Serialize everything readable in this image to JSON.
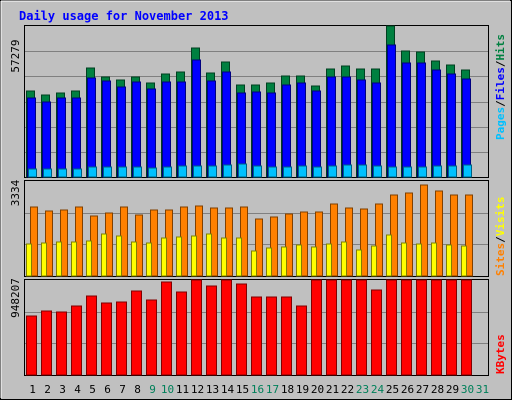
{
  "chart_data": {
    "type": "bar",
    "title": "Daily usage for November 2013",
    "categories": [
      "1",
      "2",
      "3",
      "4",
      "5",
      "6",
      "7",
      "8",
      "9",
      "10",
      "11",
      "12",
      "13",
      "14",
      "15",
      "16",
      "17",
      "18",
      "19",
      "20",
      "21",
      "22",
      "23",
      "24",
      "25",
      "26",
      "27",
      "28",
      "29",
      "30",
      "31"
    ],
    "weekend_categories": [
      "9",
      "10",
      "16",
      "17",
      "23",
      "24",
      "30",
      "31"
    ],
    "grid": true,
    "panels": [
      {
        "ylabel_max": "57279",
        "ymax": 57279,
        "legend": [
          "Pages",
          "/",
          "Files",
          "/",
          "Hits"
        ],
        "series": [
          {
            "name": "Hits",
            "color": "#008040",
            "values": [
              32500,
              31000,
              32000,
              32800,
              41200,
              38000,
              36800,
              37800,
              35800,
              39000,
              39800,
              48900,
              39500,
              43500,
              34800,
              34800,
              35600,
              38200,
              38500,
              34600,
              40800,
              42000,
              40800,
              40800,
              57100,
              47700,
              47500,
              44000,
              42300,
              40700,
              null
            ]
          },
          {
            "name": "Files",
            "color": "#0000ff",
            "values": [
              30000,
              28300,
              29800,
              29800,
              37600,
              36300,
              34200,
              36200,
              33200,
              36200,
              36200,
              44400,
              36300,
              40000,
              32000,
              32300,
              31700,
              34900,
              35800,
              32500,
              37800,
              38100,
              36900,
              35700,
              49900,
              43200,
              43200,
              40400,
              39000,
              37300,
              null
            ]
          },
          {
            "name": "Pages",
            "color": "#00c0ff",
            "values": [
              3000,
              3200,
              3100,
              3000,
              3700,
              3800,
              3700,
              3900,
              3600,
              3900,
              4100,
              4200,
              4300,
              4400,
              4800,
              4300,
              3700,
              3900,
              4100,
              3900,
              4200,
              4400,
              4400,
              4000,
              3900,
              3800,
              3900,
              4000,
              4300,
              4400,
              null
            ]
          }
        ]
      },
      {
        "ylabel_max": "3334",
        "ymax": 3334,
        "legend": [
          "Sites",
          "/",
          "Visits"
        ],
        "series": [
          {
            "name": "Visits",
            "color": "#ff8000",
            "values": [
              2420,
              2290,
              2310,
              2430,
              2120,
              2200,
              2410,
              2150,
              2330,
              2330,
              2410,
              2440,
              2400,
              2380,
              2410,
              2010,
              2080,
              2180,
              2230,
              2240,
              2520,
              2400,
              2350,
              2530,
              2860,
              2900,
              3200,
              3000,
              2860,
              2860,
              null
            ]
          },
          {
            "name": "Sites",
            "color": "#ffff00",
            "values": [
              1120,
              1170,
              1200,
              1180,
              1240,
              1460,
              1400,
              1190,
              1160,
              1350,
              1360,
              1390,
              1490,
              1350,
              1340,
              860,
              980,
              1020,
              1100,
              1020,
              1140,
              1190,
              910,
              1050,
              1440,
              1170,
              1140,
              1170,
              1080,
              1070,
              null
            ]
          }
        ]
      },
      {
        "ylabel_max": "948207",
        "ymax": 948207,
        "legend": [
          "KBytes"
        ],
        "series": [
          {
            "name": "KBytes",
            "color": "#ff0000",
            "values": [
              590000,
              640000,
              630000,
              690000,
              785000,
              720000,
              725000,
              835000,
              750000,
              925000,
              830000,
              1130000,
              890000,
              1060000,
              905000,
              775000,
              775000,
              775000,
              690000,
              950000,
              1040000,
              980000,
              985000,
              845000,
              1050000,
              1040000,
              977000,
              1110000,
              1110000,
              1020000,
              null
            ]
          }
        ]
      }
    ]
  }
}
